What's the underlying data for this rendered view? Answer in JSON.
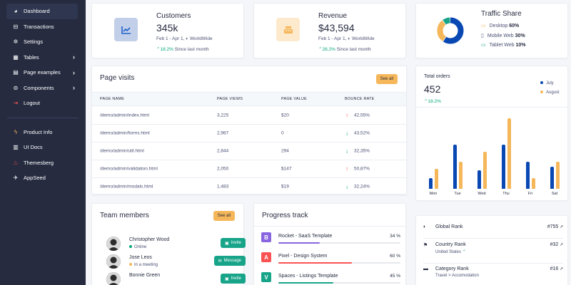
{
  "sidebar": {
    "items": [
      {
        "label": "Dashboard",
        "icon": "pie-chart-icon",
        "active": true,
        "arrow": false
      },
      {
        "label": "Transactions",
        "icon": "wallet-icon",
        "active": false,
        "arrow": false
      },
      {
        "label": "Settings",
        "icon": "gear-icon",
        "active": false,
        "arrow": false
      },
      {
        "label": "Tables",
        "icon": "table-icon",
        "active": false,
        "arrow": true
      },
      {
        "label": "Page examples",
        "icon": "file-icon",
        "active": false,
        "arrow": true
      },
      {
        "label": "Components",
        "icon": "components-icon",
        "active": false,
        "arrow": true
      },
      {
        "label": "Logout",
        "icon": "logout-icon",
        "active": false,
        "arrow": false
      }
    ],
    "secondary": [
      {
        "label": "Product Info",
        "icon": "bolt-icon"
      },
      {
        "label": "UI Docs",
        "icon": "book-icon"
      },
      {
        "label": "Themesberg",
        "icon": "themesberg-logo-icon"
      },
      {
        "label": "AppSeed",
        "icon": "appseed-logo-icon"
      }
    ]
  },
  "stats": {
    "customers": {
      "title": "Customers",
      "value": "345k",
      "range": "Feb 1 - Apr 1,",
      "region": "WorldWide",
      "change": "18.2%",
      "change_label": "Since last month",
      "icon": "chart-line-icon",
      "icon_color": "#2361ce",
      "icon_bg": "#c1cfe8"
    },
    "revenue": {
      "title": "Revenue",
      "value": "$43,594",
      "range": "Feb 1 - Apr 1,",
      "region": "WorldWide",
      "change": "28.2%",
      "change_label": "Since last month",
      "icon": "cash-register-icon",
      "icon_color": "#f5b759",
      "icon_bg": "#fde9cc"
    }
  },
  "traffic": {
    "title": "Traffic Share",
    "items": [
      {
        "label": "Desktop",
        "value": "60%",
        "icon": "desktop-icon",
        "color": "#10b981"
      },
      {
        "label": "Mobile Web",
        "value": "30%",
        "icon": "mobile-icon",
        "color": "#262b40"
      },
      {
        "label": "Tablet Web",
        "value": "10%",
        "icon": "tablet-icon",
        "color": "#10b981"
      }
    ],
    "colors": [
      "#0948b3",
      "#f5b759",
      "#18a489"
    ]
  },
  "page_visits": {
    "title": "Page visits",
    "see_all": "See all",
    "headers": [
      "PAGE NAME",
      "PAGE VIEWS",
      "PAGE VALUE",
      "BOUNCE RATE"
    ],
    "rows": [
      {
        "name": "/demo/admin/index.html",
        "views": "3,225",
        "value": "$20",
        "bounce": "42,55%",
        "trend": "up"
      },
      {
        "name": "/demo/admin/forms.html",
        "views": "2,987",
        "value": "0",
        "bounce": "43,52%",
        "trend": "down"
      },
      {
        "name": "/demo/admin/util.html",
        "views": "2,844",
        "value": "294",
        "bounce": "32,35%",
        "trend": "down"
      },
      {
        "name": "/demo/admin/validation.html",
        "views": "2,050",
        "value": "$147",
        "bounce": "50,87%",
        "trend": "up"
      },
      {
        "name": "/demo/admin/modals.html",
        "views": "1,483",
        "value": "$19",
        "bounce": "32,24%",
        "trend": "down"
      }
    ]
  },
  "orders": {
    "title": "Total orders",
    "value": "452",
    "change": "18.2%",
    "legend": [
      {
        "label": "July",
        "color": "#0948b3"
      },
      {
        "label": "August",
        "color": "#f5b759"
      }
    ]
  },
  "chart_data": {
    "type": "bar",
    "title": "Total orders",
    "categories": [
      "Mon",
      "Tue",
      "Wed",
      "Thu",
      "Fri",
      "Sat"
    ],
    "series": [
      {
        "name": "July",
        "values": [
          17,
          69,
          29,
          69,
          42,
          34
        ],
        "color": "#0948b3"
      },
      {
        "name": "August",
        "values": [
          31,
          42,
          58,
          109,
          17,
          42
        ],
        "color": "#f5b759"
      }
    ],
    "ylim": [
      0,
      115
    ]
  },
  "team": {
    "title": "Team members",
    "see_all": "See all",
    "members": [
      {
        "name": "Christopher Wood",
        "status": "Online",
        "status_color": "#05a677",
        "action": "Invite",
        "action_icon": "calendar-icon"
      },
      {
        "name": "Jose Leos",
        "status": "In a meeting",
        "status_color": "#f5b759",
        "action": "Message",
        "action_icon": "chat-icon"
      },
      {
        "name": "Bonnie Green",
        "status": "",
        "status_color": "#05a677",
        "action": "Invite",
        "action_icon": "calendar-icon"
      }
    ]
  },
  "progress": {
    "title": "Progress track",
    "items": [
      {
        "label": "Rocket - SaaS Template",
        "pct": "34 %",
        "value": 34,
        "color": "#8965e0",
        "letter": "B"
      },
      {
        "label": "Pixel - Design System",
        "pct": "60 %",
        "value": 60,
        "color": "#fa5252",
        "letter": "A"
      },
      {
        "label": "Spaces - Listings Template",
        "pct": "45 %",
        "value": 45,
        "color": "#18a489",
        "letter": "V"
      }
    ]
  },
  "ranks": [
    {
      "label": "Global Rank",
      "value": "#755",
      "sub": "",
      "icon": "globe-icon"
    },
    {
      "label": "Country Rank",
      "value": "#32",
      "sub": "United States",
      "icon": "flag-icon"
    },
    {
      "label": "Category Rank",
      "value": "#16",
      "sub": "Travel > Accomodation",
      "icon": "folder-icon"
    }
  ]
}
